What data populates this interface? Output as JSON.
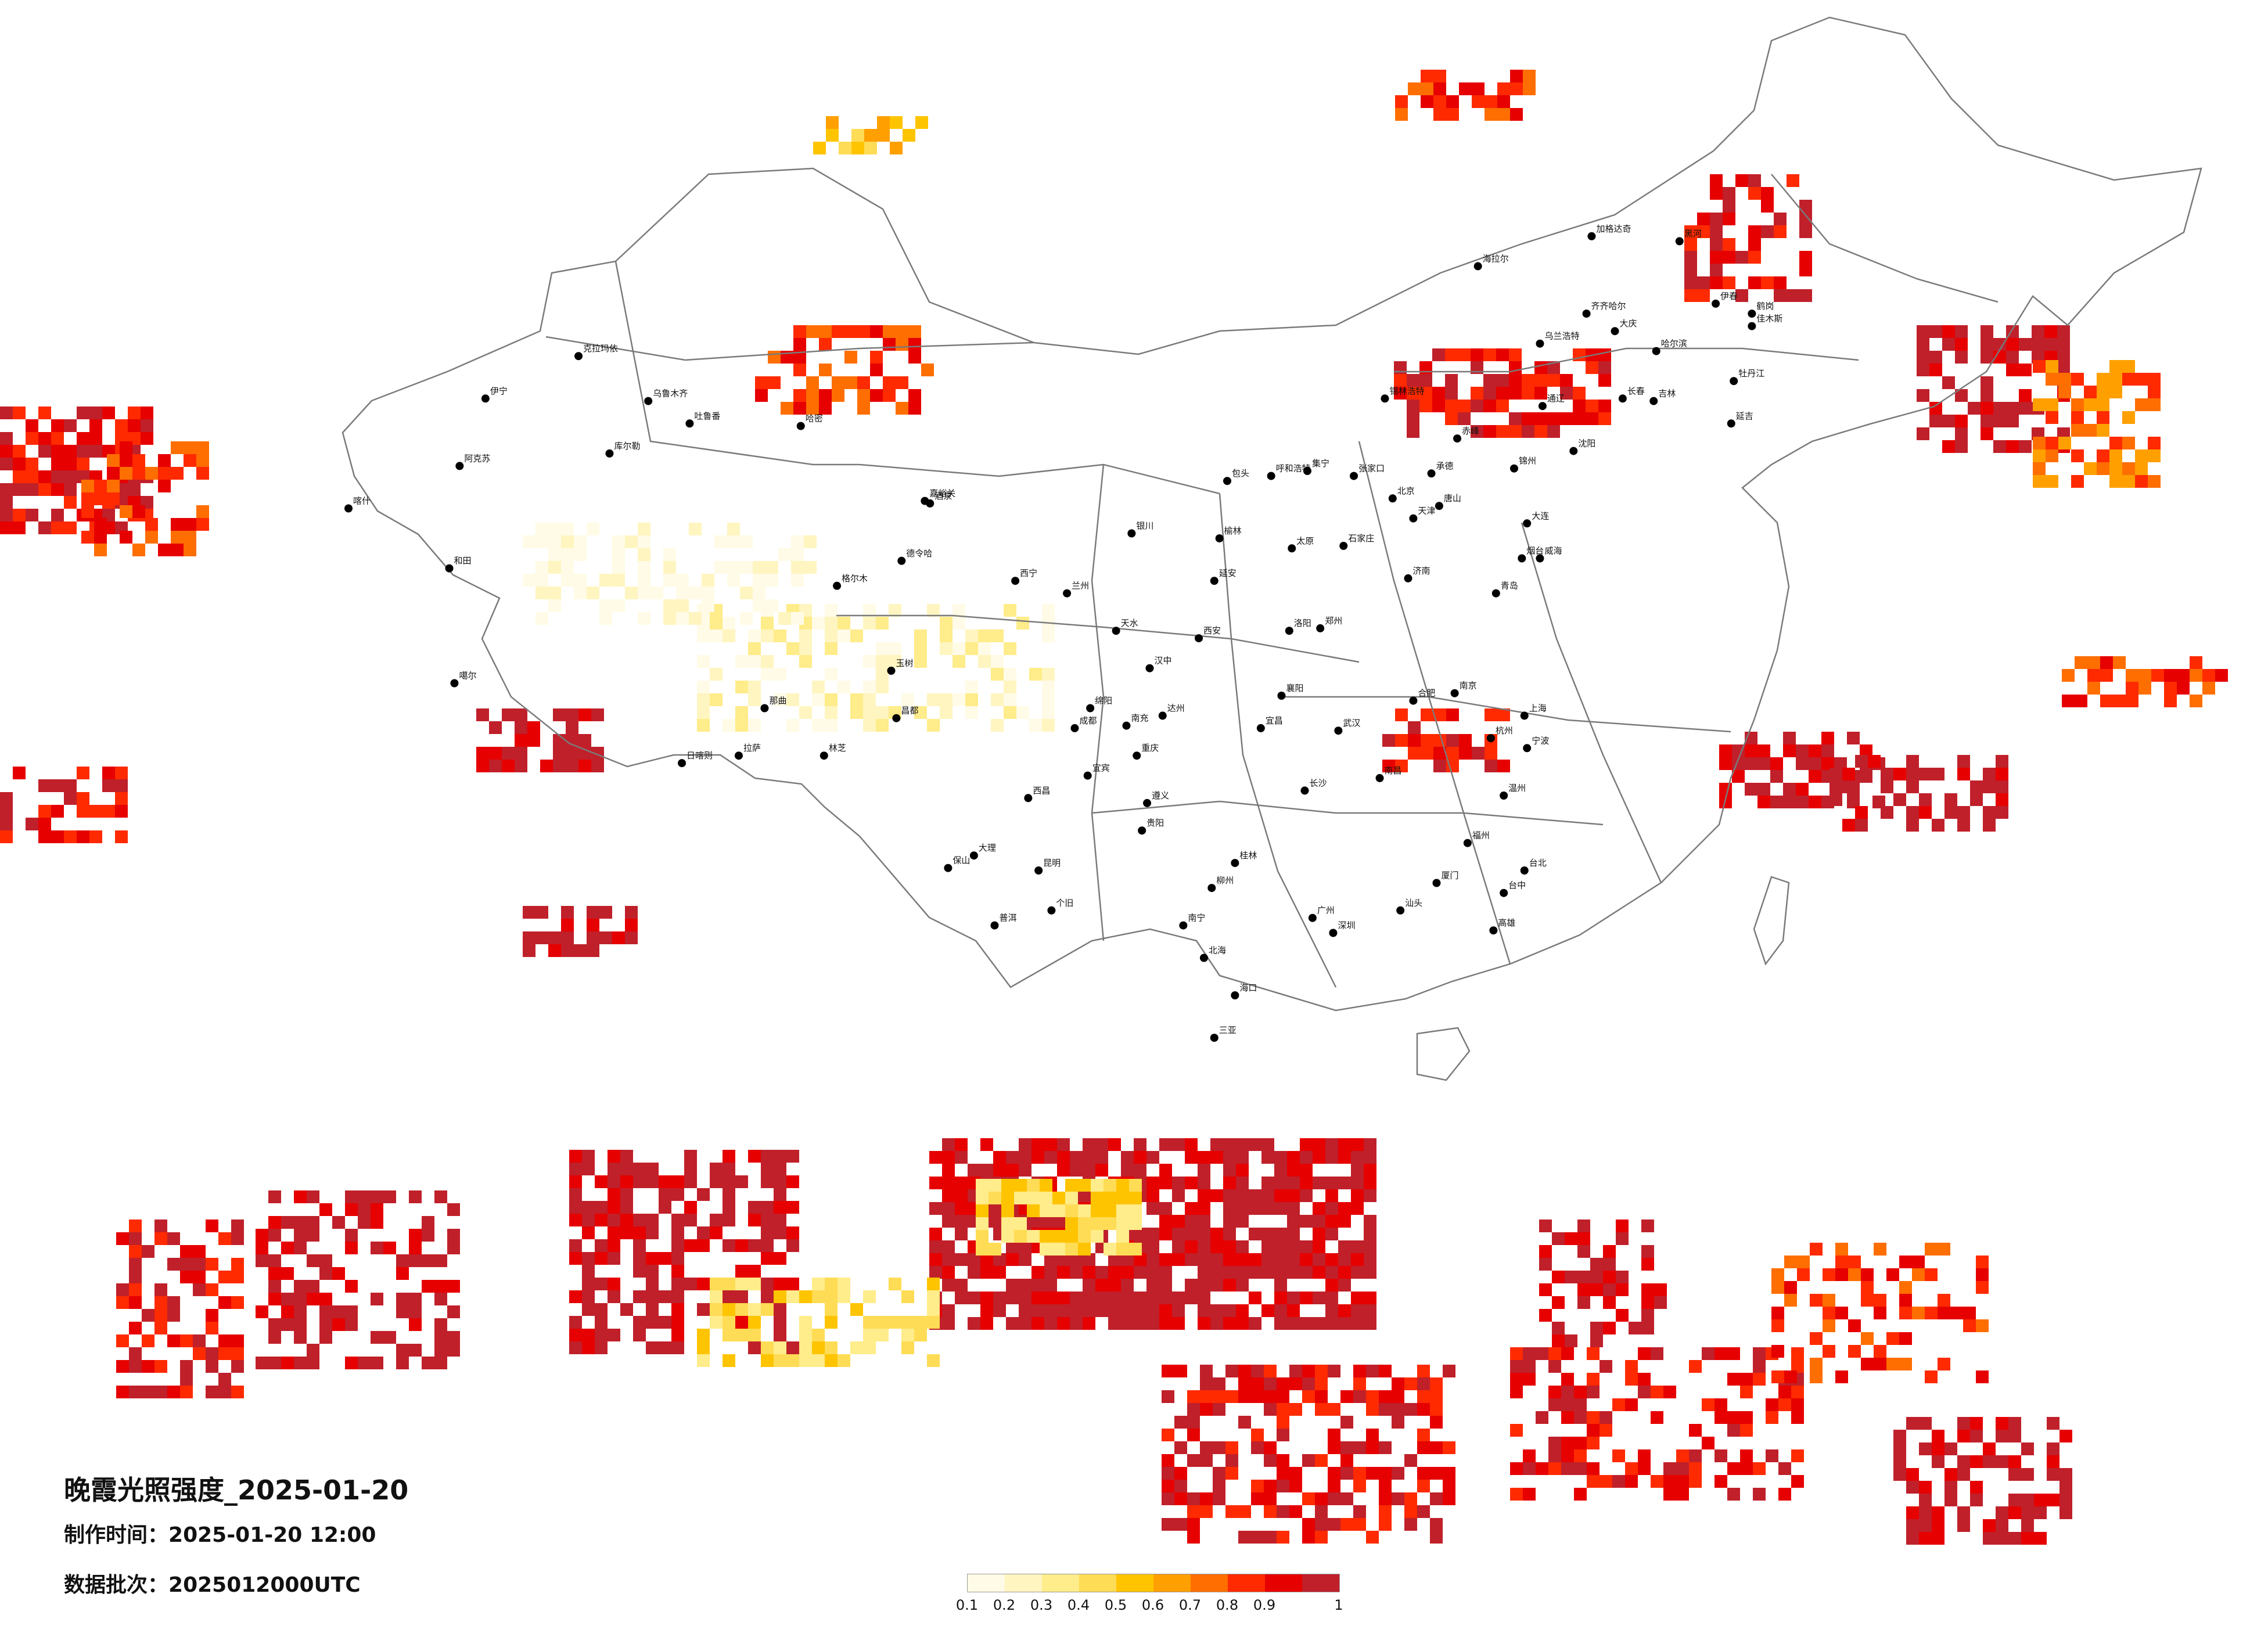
{
  "title": "晚霞光照强度_2025-01-20",
  "meta": {
    "made_label": "制作时间：",
    "made_value": "2025-01-20 12:00",
    "batch_label": "数据批次：",
    "batch_value": "2025012000UTC"
  },
  "legend": {
    "ticks": [
      "0.1",
      "0.2",
      "0.3",
      "0.4",
      "0.5",
      "0.6",
      "0.7",
      "0.8",
      "0.9",
      "1"
    ],
    "colors": [
      "#fffbe6",
      "#fff5c0",
      "#ffec8a",
      "#ffdc55",
      "#ffc400",
      "#ffa000",
      "#ff6e00",
      "#ff2a00",
      "#e60000",
      "#c0202a"
    ]
  },
  "cities": [
    {
      "name": "克拉玛依",
      "lon": 84.9,
      "lat": 45.6
    },
    {
      "name": "伊宁",
      "lon": 81.3,
      "lat": 43.9
    },
    {
      "name": "阿克苏",
      "lon": 80.3,
      "lat": 41.2
    },
    {
      "name": "喀什",
      "lon": 76.0,
      "lat": 39.5
    },
    {
      "name": "和田",
      "lon": 79.9,
      "lat": 37.1
    },
    {
      "name": "乌鲁木齐",
      "lon": 87.6,
      "lat": 43.8
    },
    {
      "name": "吐鲁番",
      "lon": 89.2,
      "lat": 42.9
    },
    {
      "name": "哈密",
      "lon": 93.5,
      "lat": 42.8
    },
    {
      "name": "库尔勒",
      "lon": 86.1,
      "lat": 41.7
    },
    {
      "name": "嘉峪关",
      "lon": 98.3,
      "lat": 39.8
    },
    {
      "name": "酒泉",
      "lon": 98.5,
      "lat": 39.7
    },
    {
      "name": "格尔木",
      "lon": 94.9,
      "lat": 36.4
    },
    {
      "name": "德令哈",
      "lon": 97.4,
      "lat": 37.4
    },
    {
      "name": "西宁",
      "lon": 101.8,
      "lat": 36.6
    },
    {
      "name": "兰州",
      "lon": 103.8,
      "lat": 36.1
    },
    {
      "name": "银川",
      "lon": 106.3,
      "lat": 38.5
    },
    {
      "name": "呼和浩特",
      "lon": 111.7,
      "lat": 40.8
    },
    {
      "name": "包头",
      "lon": 110.0,
      "lat": 40.6
    },
    {
      "name": "集宁",
      "lon": 113.1,
      "lat": 41.0
    },
    {
      "name": "张家口",
      "lon": 114.9,
      "lat": 40.8
    },
    {
      "name": "北京",
      "lon": 116.4,
      "lat": 39.9
    },
    {
      "name": "天津",
      "lon": 117.2,
      "lat": 39.1
    },
    {
      "name": "唐山",
      "lon": 118.2,
      "lat": 39.6
    },
    {
      "name": "承德",
      "lon": 117.9,
      "lat": 40.9
    },
    {
      "name": "赤峰",
      "lon": 118.9,
      "lat": 42.3
    },
    {
      "name": "锦州",
      "lon": 121.1,
      "lat": 41.1
    },
    {
      "name": "沈阳",
      "lon": 123.4,
      "lat": 41.8
    },
    {
      "name": "大连",
      "lon": 121.6,
      "lat": 38.9
    },
    {
      "name": "长春",
      "lon": 125.3,
      "lat": 43.9
    },
    {
      "name": "吉林",
      "lon": 126.5,
      "lat": 43.8
    },
    {
      "name": "延吉",
      "lon": 129.5,
      "lat": 42.9
    },
    {
      "name": "哈尔滨",
      "lon": 126.6,
      "lat": 45.8
    },
    {
      "name": "齐齐哈尔",
      "lon": 123.9,
      "lat": 47.3
    },
    {
      "name": "大庆",
      "lon": 125.0,
      "lat": 46.6
    },
    {
      "name": "牡丹江",
      "lon": 129.6,
      "lat": 44.6
    },
    {
      "name": "佳木斯",
      "lon": 130.3,
      "lat": 46.8
    },
    {
      "name": "鹤岗",
      "lon": 130.3,
      "lat": 47.3
    },
    {
      "name": "伊春",
      "lon": 128.9,
      "lat": 47.7
    },
    {
      "name": "黑河",
      "lon": 127.5,
      "lat": 50.2
    },
    {
      "name": "加格达奇",
      "lon": 124.1,
      "lat": 50.4
    },
    {
      "name": "海拉尔",
      "lon": 119.7,
      "lat": 49.2
    },
    {
      "name": "锡林浩特",
      "lon": 116.1,
      "lat": 43.9
    },
    {
      "name": "通辽",
      "lon": 122.2,
      "lat": 43.6
    },
    {
      "name": "乌兰浩特",
      "lon": 122.1,
      "lat": 46.1
    },
    {
      "name": "太原",
      "lon": 112.5,
      "lat": 37.9
    },
    {
      "name": "石家庄",
      "lon": 114.5,
      "lat": 38.0
    },
    {
      "name": "济南",
      "lon": 117.0,
      "lat": 36.7
    },
    {
      "name": "青岛",
      "lon": 120.4,
      "lat": 36.1
    },
    {
      "name": "烟台",
      "lon": 121.4,
      "lat": 37.5
    },
    {
      "name": "威海",
      "lon": 122.1,
      "lat": 37.5
    },
    {
      "name": "郑州",
      "lon": 113.6,
      "lat": 34.7
    },
    {
      "name": "洛阳",
      "lon": 112.4,
      "lat": 34.6
    },
    {
      "name": "西安",
      "lon": 108.9,
      "lat": 34.3
    },
    {
      "name": "延安",
      "lon": 109.5,
      "lat": 36.6
    },
    {
      "name": "榆林",
      "lon": 109.7,
      "lat": 38.3
    },
    {
      "name": "汉中",
      "lon": 107.0,
      "lat": 33.1
    },
    {
      "name": "天水",
      "lon": 105.7,
      "lat": 34.6
    },
    {
      "name": "武汉",
      "lon": 114.3,
      "lat": 30.6
    },
    {
      "name": "合肥",
      "lon": 117.2,
      "lat": 31.8
    },
    {
      "name": "南京",
      "lon": 118.8,
      "lat": 32.1
    },
    {
      "name": "上海",
      "lon": 121.5,
      "lat": 31.2
    },
    {
      "name": "杭州",
      "lon": 120.2,
      "lat": 30.3
    },
    {
      "name": "宁波",
      "lon": 121.6,
      "lat": 29.9
    },
    {
      "name": "温州",
      "lon": 120.7,
      "lat": 28.0
    },
    {
      "name": "南昌",
      "lon": 115.9,
      "lat": 28.7
    },
    {
      "name": "长沙",
      "lon": 113.0,
      "lat": 28.2
    },
    {
      "name": "福州",
      "lon": 119.3,
      "lat": 26.1
    },
    {
      "name": "厦门",
      "lon": 118.1,
      "lat": 24.5
    },
    {
      "name": "广州",
      "lon": 113.3,
      "lat": 23.1
    },
    {
      "name": "深圳",
      "lon": 114.1,
      "lat": 22.5
    },
    {
      "name": "汕头",
      "lon": 116.7,
      "lat": 23.4
    },
    {
      "name": "南宁",
      "lon": 108.3,
      "lat": 22.8
    },
    {
      "name": "桂林",
      "lon": 110.3,
      "lat": 25.3
    },
    {
      "name": "柳州",
      "lon": 109.4,
      "lat": 24.3
    },
    {
      "name": "北海",
      "lon": 109.1,
      "lat": 21.5
    },
    {
      "name": "海口",
      "lon": 110.3,
      "lat": 20.0
    },
    {
      "name": "三亚",
      "lon": 109.5,
      "lat": 18.3
    },
    {
      "name": "贵阳",
      "lon": 106.7,
      "lat": 26.6
    },
    {
      "name": "遵义",
      "lon": 106.9,
      "lat": 27.7
    },
    {
      "name": "昆明",
      "lon": 102.7,
      "lat": 25.0
    },
    {
      "name": "大理",
      "lon": 100.2,
      "lat": 25.6
    },
    {
      "name": "保山",
      "lon": 99.2,
      "lat": 25.1
    },
    {
      "name": "普洱",
      "lon": 101.0,
      "lat": 22.8
    },
    {
      "name": "个旧",
      "lon": 103.2,
      "lat": 23.4
    },
    {
      "name": "成都",
      "lon": 104.1,
      "lat": 30.7
    },
    {
      "name": "重庆",
      "lon": 106.5,
      "lat": 29.6
    },
    {
      "name": "宜宾",
      "lon": 104.6,
      "lat": 28.8
    },
    {
      "name": "西昌",
      "lon": 102.3,
      "lat": 27.9
    },
    {
      "name": "绵阳",
      "lon": 104.7,
      "lat": 31.5
    },
    {
      "name": "南充",
      "lon": 106.1,
      "lat": 30.8
    },
    {
      "name": "达州",
      "lon": 107.5,
      "lat": 31.2
    },
    {
      "name": "宜昌",
      "lon": 111.3,
      "lat": 30.7
    },
    {
      "name": "襄阳",
      "lon": 112.1,
      "lat": 32.0
    },
    {
      "name": "拉萨",
      "lon": 91.1,
      "lat": 29.6
    },
    {
      "name": "日喀则",
      "lon": 88.9,
      "lat": 29.3
    },
    {
      "name": "林芝",
      "lon": 94.4,
      "lat": 29.6
    },
    {
      "name": "昌都",
      "lon": 97.2,
      "lat": 31.1
    },
    {
      "name": "那曲",
      "lon": 92.1,
      "lat": 31.5
    },
    {
      "name": "噶尔",
      "lon": 80.1,
      "lat": 32.5
    },
    {
      "name": "玉树",
      "lon": 97.0,
      "lat": 33.0
    },
    {
      "name": "台北",
      "lon": 121.5,
      "lat": 25.0
    },
    {
      "name": "高雄",
      "lon": 120.3,
      "lat": 22.6
    },
    {
      "name": "台中",
      "lon": 120.7,
      "lat": 24.1
    }
  ]
}
